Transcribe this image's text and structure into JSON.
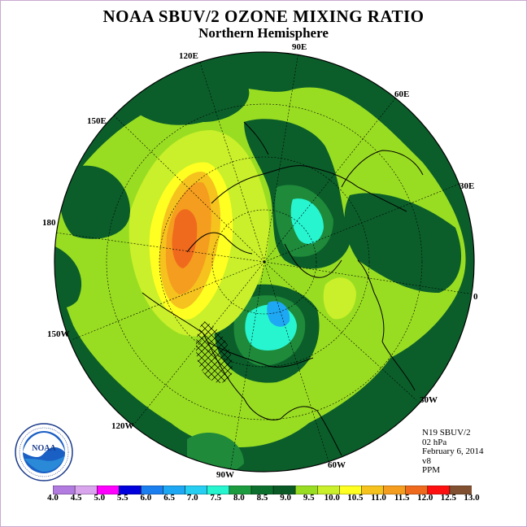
{
  "title": "NOAA SBUV/2 OZONE MIXING RATIO",
  "subtitle": "Northern Hemisphere",
  "longitude_labels": {
    "e90": "90E",
    "e120": "120E",
    "e60": "60E",
    "e150": "150E",
    "e30": "30E",
    "d180": "180",
    "d0": "0",
    "w150": "150W",
    "w30": "30W",
    "w120": "120W",
    "w60": "60W",
    "w90": "90W"
  },
  "info": {
    "satellite": "N19 SBUV/2",
    "level": "02 hPa",
    "date": "February 6, 2014",
    "version": "v8",
    "units": "PPM"
  },
  "logo_text": "NOAA",
  "colorbar": {
    "ticks": [
      "4.0",
      "4.5",
      "5.0",
      "5.5",
      "6.0",
      "6.5",
      "7.0",
      "7.5",
      "8.0",
      "8.5",
      "9.0",
      "9.5",
      "10.0",
      "10.5",
      "11.0",
      "11.5",
      "12.0",
      "12.5",
      "13.0"
    ],
    "colors": [
      "#b27be0",
      "#d9a6ee",
      "#ff00ff",
      "#0000dd",
      "#1c7ff0",
      "#1ea7f2",
      "#26cff2",
      "#27f5d0",
      "#1c9c3e",
      "#0d6f2e",
      "#0a5a26",
      "#99dd22",
      "#c9f02a",
      "#ffff22",
      "#f5c21e",
      "#f59d1e",
      "#f06a1e",
      "#ff1010",
      "#805030"
    ]
  },
  "map_regions": {
    "background_level": "8.5-9.0",
    "colors": {
      "dark_green": "#0b5e2a",
      "mid_green": "#1e8a3a",
      "lime": "#99dd22",
      "yellow_green": "#c9f02a",
      "yellow": "#ffff22",
      "gold": "#f5c21e",
      "orange": "#f59d1e",
      "red_orange": "#f06a1e",
      "cyan": "#27f5d0",
      "light_blue": "#26cff2",
      "sky": "#1ea7f2"
    }
  }
}
